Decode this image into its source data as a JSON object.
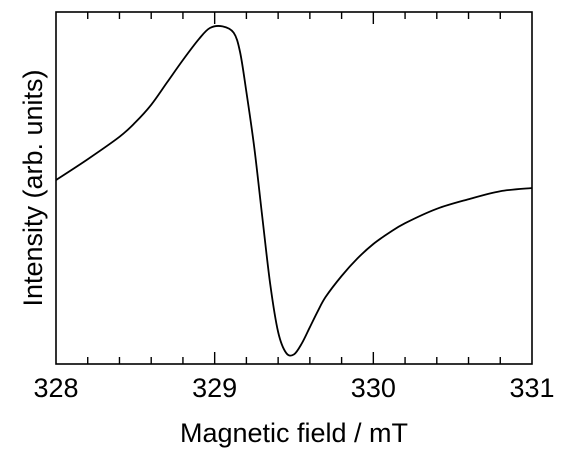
{
  "chart_data": {
    "type": "line",
    "title": "",
    "xlabel": "Magnetic field / mT",
    "ylabel": "Intensity (arb. units)",
    "xlim": [
      328,
      331
    ],
    "ylim": [
      -1.1,
      1.1
    ],
    "x_ticks": [
      328,
      329,
      330,
      331
    ],
    "x_tick_labels": [
      "328",
      "329",
      "330",
      "331"
    ],
    "x_minor_tick_step": 0.2,
    "y_tick_labels_shown": false,
    "grid": false,
    "legend": "none",
    "line_color": "#000000",
    "series": [
      {
        "x": [
          328.0,
          328.2,
          328.4,
          328.5,
          328.6,
          328.7,
          328.8,
          328.9,
          328.97,
          329.05,
          329.12,
          329.16,
          329.2,
          329.25,
          329.3,
          329.35,
          329.4,
          329.45,
          329.5,
          329.55,
          329.6,
          329.65,
          329.7,
          329.8,
          329.9,
          330.0,
          330.1,
          330.2,
          330.4,
          330.6,
          330.8,
          331.0
        ],
        "y": [
          0.05,
          0.18,
          0.32,
          0.41,
          0.52,
          0.66,
          0.8,
          0.93,
          1.0,
          1.01,
          0.97,
          0.85,
          0.6,
          0.25,
          -0.18,
          -0.6,
          -0.9,
          -1.03,
          -1.04,
          -0.97,
          -0.87,
          -0.77,
          -0.68,
          -0.55,
          -0.44,
          -0.35,
          -0.28,
          -0.22,
          -0.13,
          -0.07,
          -0.02,
          0.0
        ]
      }
    ]
  }
}
